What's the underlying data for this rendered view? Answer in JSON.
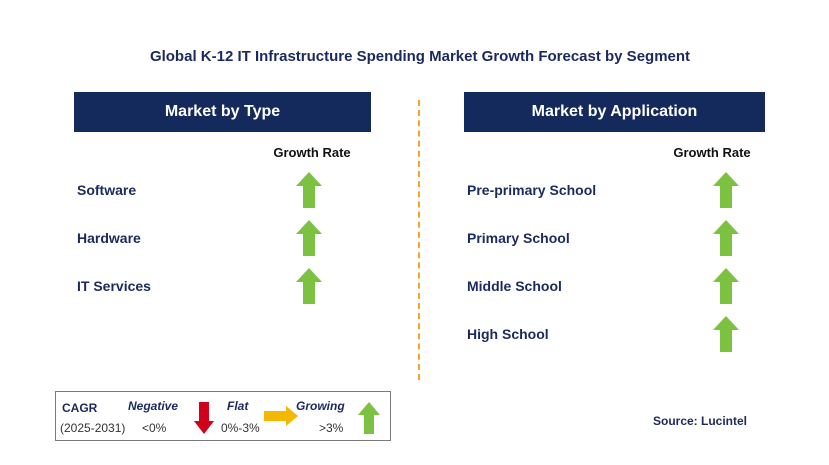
{
  "title": "Global K-12 IT Infrastructure Spending Market Growth Forecast by Segment",
  "left_panel": {
    "header": "Market by Type",
    "column_header": "Growth Rate",
    "rows": [
      {
        "label": "Software",
        "trend": "growing"
      },
      {
        "label": "Hardware",
        "trend": "growing"
      },
      {
        "label": "IT Services",
        "trend": "growing"
      }
    ]
  },
  "right_panel": {
    "header": "Market by Application",
    "column_header": "Growth Rate",
    "rows": [
      {
        "label": "Pre-primary School",
        "trend": "growing"
      },
      {
        "label": "Primary School",
        "trend": "growing"
      },
      {
        "label": "Middle School",
        "trend": "growing"
      },
      {
        "label": "High School",
        "trend": "growing"
      }
    ]
  },
  "legend": {
    "cagr_label": "CAGR",
    "period": "(2025-2031)",
    "negative_label": "Negative",
    "negative_value": "<0%",
    "flat_label": "Flat",
    "flat_value": "0%-3%",
    "growing_label": "Growing",
    "growing_value": ">3%"
  },
  "source": "Source: Lucintel",
  "colors": {
    "header_bg": "#142a5c",
    "up_arrow": "#7dc142",
    "down_arrow": "#d0021b",
    "flat_arrow": "#f5b800",
    "divider": "#f5a623"
  },
  "icons": {
    "growing": "up-arrow-icon",
    "negative": "down-arrow-icon",
    "flat": "right-arrow-icon"
  }
}
